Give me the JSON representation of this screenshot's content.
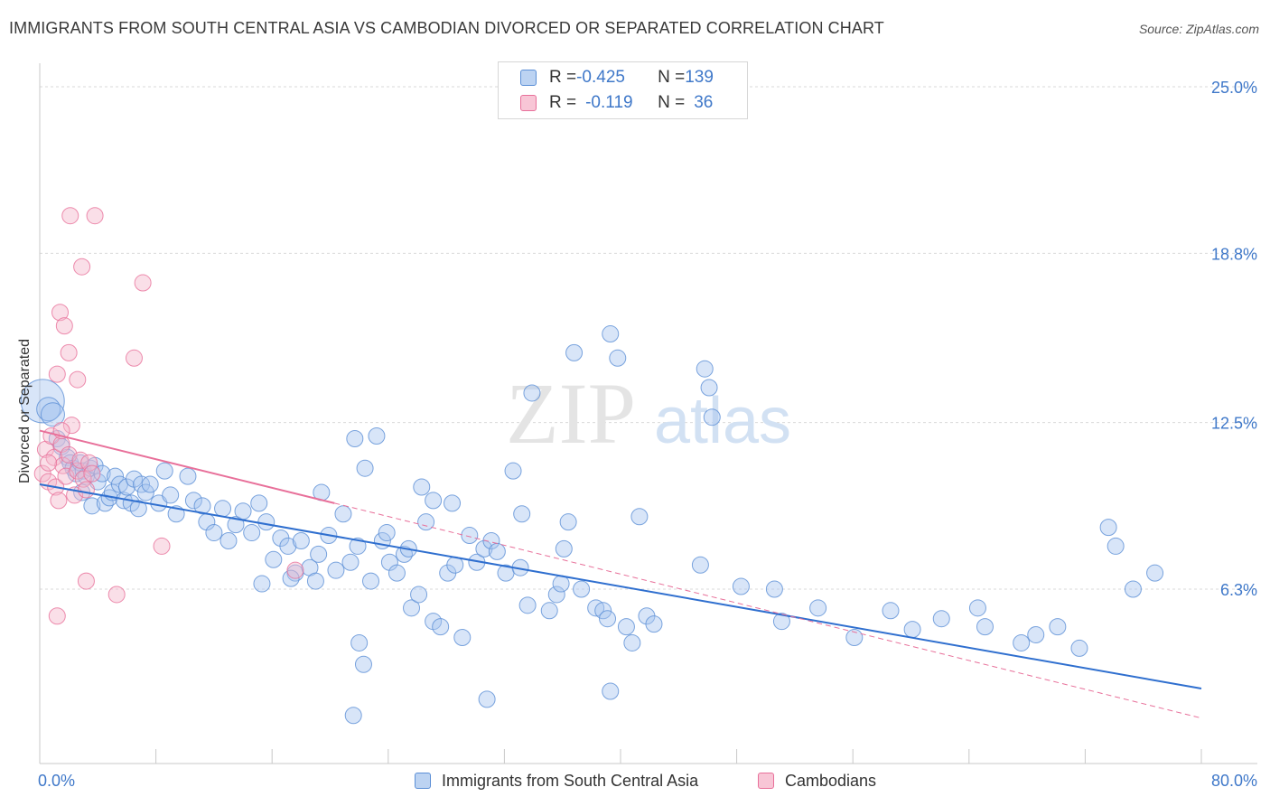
{
  "title": "IMMIGRANTS FROM SOUTH CENTRAL ASIA VS CAMBODIAN DIVORCED OR SEPARATED CORRELATION CHART",
  "source": "Source: ZipAtlas.com",
  "watermark": {
    "zip": "ZIP",
    "atlas": "atlas"
  },
  "legend": {
    "rows": [
      {
        "r_label": "R = ",
        "r_value": "-0.425",
        "n_label": "N = ",
        "n_value": "139"
      },
      {
        "r_label": "R = ",
        "r_value": "-0.119",
        "n_label": "N = ",
        "n_value": "36"
      }
    ]
  },
  "colors": {
    "blue": "#5b8fd6",
    "blue_fill": "#a9c6ef",
    "pink": "#e8709a",
    "pink_fill": "#f5b7cb",
    "tick_text": "#3f78c9",
    "grid": "#d9d9d9"
  },
  "chart_data": {
    "type": "scatter",
    "title": "IMMIGRANTS FROM SOUTH CENTRAL ASIA VS CAMBODIAN DIVORCED OR SEPARATED CORRELATION CHART",
    "xlabel": "",
    "ylabel": "Divorced or Separated",
    "xlim": [
      0,
      80
    ],
    "ylim": [
      0,
      26
    ],
    "x_tick_labels": [
      "0.0%",
      "80.0%"
    ],
    "y_ticks": [
      6.3,
      12.5,
      18.8,
      25.0
    ],
    "y_tick_labels": [
      "6.3%",
      "12.5%",
      "18.8%",
      "25.0%"
    ],
    "grid": true,
    "legend_position": "bottom",
    "series": [
      {
        "name": "Immigrants from South Central Asia",
        "color": "#5b8fd6",
        "trend": {
          "x": [
            0,
            80
          ],
          "y": [
            10.2,
            2.6
          ],
          "style": "solid"
        },
        "points": [
          [
            0.2,
            13.3
          ],
          [
            0.6,
            13.0
          ],
          [
            0.9,
            12.8
          ],
          [
            1.2,
            11.9
          ],
          [
            1.5,
            11.6
          ],
          [
            1.9,
            11.2
          ],
          [
            2.1,
            11.0
          ],
          [
            2.3,
            10.8
          ],
          [
            2.5,
            10.6
          ],
          [
            2.8,
            11.0
          ],
          [
            3.0,
            10.7
          ],
          [
            3.2,
            10.5
          ],
          [
            3.5,
            10.8
          ],
          [
            3.8,
            10.9
          ],
          [
            4.0,
            10.3
          ],
          [
            4.3,
            10.6
          ],
          [
            2.9,
            9.9
          ],
          [
            3.6,
            9.4
          ],
          [
            4.5,
            9.5
          ],
          [
            4.8,
            9.7
          ],
          [
            5.0,
            9.9
          ],
          [
            5.2,
            10.5
          ],
          [
            5.5,
            10.2
          ],
          [
            5.8,
            9.6
          ],
          [
            6.0,
            10.1
          ],
          [
            6.3,
            9.5
          ],
          [
            6.5,
            10.4
          ],
          [
            6.8,
            9.3
          ],
          [
            7.0,
            10.2
          ],
          [
            7.3,
            9.9
          ],
          [
            7.6,
            10.2
          ],
          [
            8.2,
            9.5
          ],
          [
            8.6,
            10.7
          ],
          [
            9.0,
            9.8
          ],
          [
            9.4,
            9.1
          ],
          [
            10.2,
            10.5
          ],
          [
            10.6,
            9.6
          ],
          [
            11.2,
            9.4
          ],
          [
            11.5,
            8.8
          ],
          [
            12.0,
            8.4
          ],
          [
            12.6,
            9.3
          ],
          [
            13.0,
            8.1
          ],
          [
            13.5,
            8.7
          ],
          [
            14.0,
            9.2
          ],
          [
            14.6,
            8.4
          ],
          [
            15.1,
            9.5
          ],
          [
            15.6,
            8.8
          ],
          [
            16.1,
            7.4
          ],
          [
            16.6,
            8.2
          ],
          [
            17.1,
            7.9
          ],
          [
            17.6,
            6.9
          ],
          [
            18.0,
            8.1
          ],
          [
            18.6,
            7.1
          ],
          [
            19.0,
            6.6
          ],
          [
            19.4,
            9.9
          ],
          [
            19.9,
            8.3
          ],
          [
            20.4,
            7.0
          ],
          [
            20.9,
            9.1
          ],
          [
            21.4,
            7.3
          ],
          [
            21.9,
            7.9
          ],
          [
            22.4,
            10.8
          ],
          [
            22.8,
            6.6
          ],
          [
            23.2,
            12.0
          ],
          [
            23.6,
            8.1
          ],
          [
            24.1,
            7.3
          ],
          [
            24.6,
            6.9
          ],
          [
            25.1,
            7.6
          ],
          [
            25.6,
            5.6
          ],
          [
            26.1,
            6.1
          ],
          [
            26.6,
            8.8
          ],
          [
            27.1,
            5.1
          ],
          [
            27.6,
            4.9
          ],
          [
            28.1,
            6.9
          ],
          [
            28.6,
            7.2
          ],
          [
            29.1,
            4.5
          ],
          [
            29.6,
            8.3
          ],
          [
            30.1,
            7.3
          ],
          [
            30.6,
            7.8
          ],
          [
            31.1,
            8.1
          ],
          [
            32.1,
            6.9
          ],
          [
            32.6,
            10.7
          ],
          [
            33.1,
            7.1
          ],
          [
            33.6,
            5.7
          ],
          [
            33.9,
            13.6
          ],
          [
            35.1,
            5.5
          ],
          [
            35.6,
            6.1
          ],
          [
            36.1,
            7.8
          ],
          [
            36.4,
            8.8
          ],
          [
            37.3,
            6.3
          ],
          [
            38.3,
            5.6
          ],
          [
            38.8,
            5.5
          ],
          [
            39.1,
            5.2
          ],
          [
            39.3,
            15.8
          ],
          [
            39.8,
            14.9
          ],
          [
            40.4,
            4.9
          ],
          [
            40.8,
            4.3
          ],
          [
            41.3,
            9.0
          ],
          [
            41.8,
            5.3
          ],
          [
            42.3,
            5.0
          ],
          [
            45.5,
            7.2
          ],
          [
            45.8,
            14.5
          ],
          [
            46.1,
            13.8
          ],
          [
            46.3,
            12.7
          ],
          [
            27.1,
            9.6
          ],
          [
            26.3,
            10.1
          ],
          [
            22.0,
            4.3
          ],
          [
            22.3,
            3.5
          ],
          [
            21.6,
            1.6
          ],
          [
            17.3,
            6.7
          ],
          [
            30.8,
            2.2
          ],
          [
            39.3,
            2.5
          ],
          [
            48.3,
            6.4
          ],
          [
            50.6,
            6.3
          ],
          [
            51.1,
            5.1
          ],
          [
            53.6,
            5.6
          ],
          [
            56.1,
            4.5
          ],
          [
            58.6,
            5.5
          ],
          [
            60.1,
            4.8
          ],
          [
            62.1,
            5.2
          ],
          [
            64.6,
            5.6
          ],
          [
            65.1,
            4.9
          ],
          [
            67.6,
            4.3
          ],
          [
            68.6,
            4.6
          ],
          [
            70.1,
            4.9
          ],
          [
            71.6,
            4.1
          ],
          [
            73.6,
            8.6
          ],
          [
            74.1,
            7.9
          ],
          [
            75.3,
            6.3
          ],
          [
            76.8,
            6.9
          ],
          [
            15.3,
            6.5
          ],
          [
            19.2,
            7.6
          ],
          [
            21.7,
            11.9
          ],
          [
            23.9,
            8.4
          ],
          [
            25.4,
            7.8
          ],
          [
            28.4,
            9.5
          ],
          [
            31.5,
            7.7
          ],
          [
            33.2,
            9.1
          ],
          [
            35.9,
            6.5
          ],
          [
            36.8,
            15.1
          ]
        ]
      },
      {
        "name": "Cambodians",
        "color": "#e8709a",
        "trend": {
          "x": [
            0,
            20.3
          ],
          "y": [
            12.2,
            9.5
          ],
          "style": "solid",
          "extension": {
            "x": [
              20.3,
              80
            ],
            "y": [
              9.5,
              1.5
            ],
            "style": "dashed"
          }
        },
        "points": [
          [
            0.2,
            10.6
          ],
          [
            0.4,
            11.5
          ],
          [
            0.6,
            10.3
          ],
          [
            0.8,
            12.0
          ],
          [
            1.0,
            11.2
          ],
          [
            1.1,
            10.1
          ],
          [
            1.3,
            9.6
          ],
          [
            1.5,
            11.7
          ],
          [
            1.6,
            10.9
          ],
          [
            1.8,
            10.5
          ],
          [
            2.0,
            11.3
          ],
          [
            2.2,
            12.4
          ],
          [
            2.4,
            9.8
          ],
          [
            2.6,
            10.7
          ],
          [
            2.8,
            11.1
          ],
          [
            3.0,
            10.4
          ],
          [
            3.2,
            10.0
          ],
          [
            3.4,
            11.0
          ],
          [
            3.6,
            10.6
          ],
          [
            2.1,
            20.2
          ],
          [
            3.8,
            20.2
          ],
          [
            2.9,
            18.3
          ],
          [
            7.1,
            17.7
          ],
          [
            1.4,
            16.6
          ],
          [
            1.7,
            16.1
          ],
          [
            2.0,
            15.1
          ],
          [
            6.5,
            14.9
          ],
          [
            1.2,
            14.3
          ],
          [
            2.6,
            14.1
          ],
          [
            1.5,
            12.2
          ],
          [
            1.2,
            5.3
          ],
          [
            3.2,
            6.6
          ],
          [
            5.3,
            6.1
          ],
          [
            8.4,
            7.9
          ],
          [
            17.6,
            7.0
          ],
          [
            0.6,
            11.0
          ]
        ]
      }
    ]
  },
  "bottom_legend": [
    "Immigrants from South Central Asia",
    "Cambodians"
  ]
}
